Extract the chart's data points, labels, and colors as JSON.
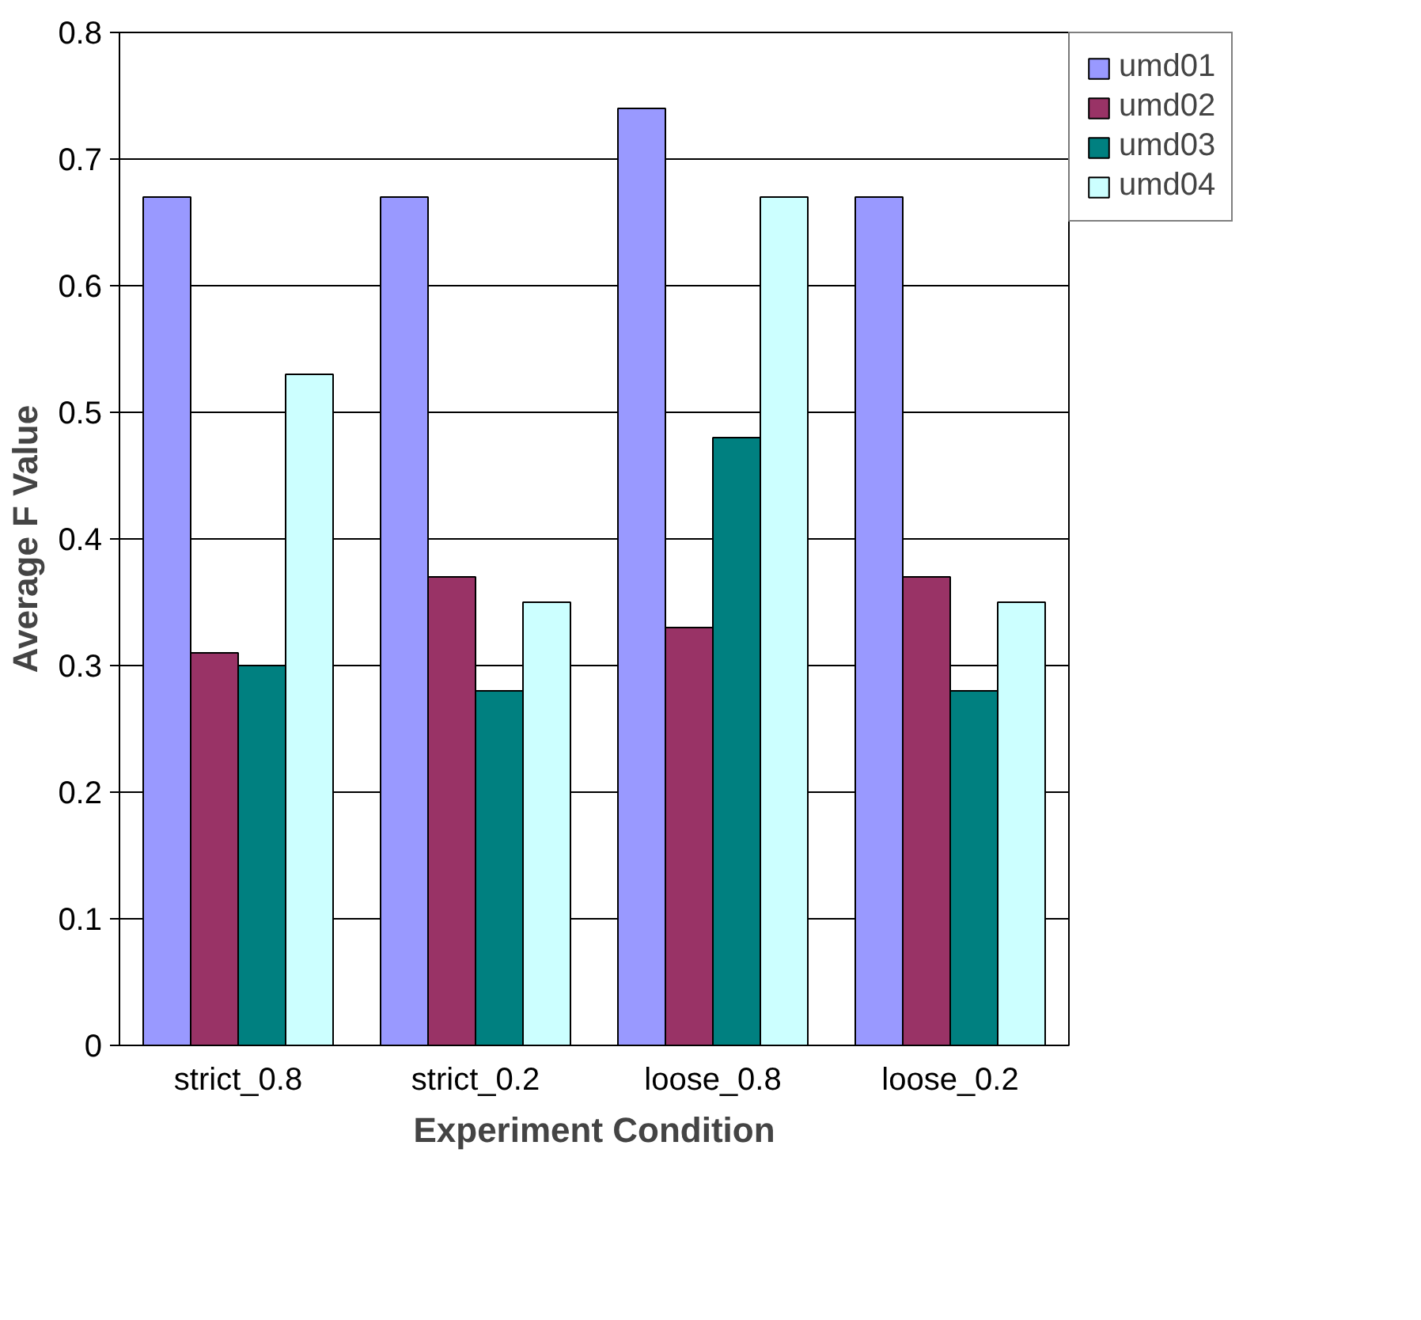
{
  "chart_data": {
    "type": "bar",
    "xlabel": "Experiment Condition",
    "ylabel": "Average F Value",
    "categories": [
      "strict_0.8",
      "strict_0.2",
      "loose_0.8",
      "loose_0.2"
    ],
    "series": [
      {
        "name": "umd01",
        "color": "#9999ff",
        "values": [
          0.67,
          0.67,
          0.74,
          0.67
        ]
      },
      {
        "name": "umd02",
        "color": "#993366",
        "values": [
          0.31,
          0.37,
          0.33,
          0.37
        ]
      },
      {
        "name": "umd03",
        "color": "#008080",
        "values": [
          0.3,
          0.28,
          0.48,
          0.28
        ]
      },
      {
        "name": "umd04",
        "color": "#ccffff",
        "values": [
          0.53,
          0.35,
          0.67,
          0.35
        ]
      }
    ],
    "ylim": [
      0,
      0.8
    ],
    "yticks": [
      0,
      0.1,
      0.2,
      0.3,
      0.4,
      0.5,
      0.6,
      0.7,
      0.8
    ],
    "grid": "y",
    "legend": "top right"
  }
}
